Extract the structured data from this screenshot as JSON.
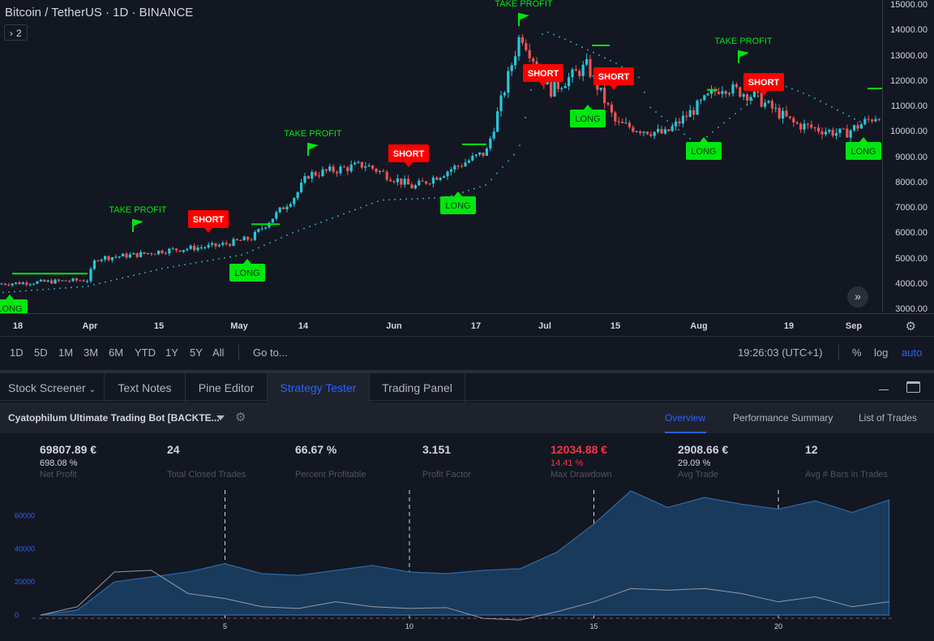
{
  "symbol": {
    "title": "Bitcoin / TetherUS · 1D · BINANCE",
    "indicator_count": "2"
  },
  "price_axis": [
    "15000.00",
    "14000.00",
    "13000.00",
    "12000.00",
    "11000.00",
    "10000.00",
    "9000.00",
    "8000.00",
    "7000.00",
    "6000.00",
    "5000.00",
    "4000.00",
    "3000.00"
  ],
  "time_axis": [
    "18",
    "Apr",
    "15",
    "May",
    "14",
    "Jun",
    "17",
    "Jul",
    "15",
    "Aug",
    "19",
    "Sep"
  ],
  "signals": [
    {
      "type": "long",
      "label": "LONG"
    },
    {
      "type": "tp",
      "label": "TAKE PROFIT"
    },
    {
      "type": "short",
      "label": "SHORT"
    },
    {
      "type": "long",
      "label": "LONG"
    },
    {
      "type": "tp",
      "label": "TAKE PROFIT"
    },
    {
      "type": "short",
      "label": "SHORT"
    },
    {
      "type": "long",
      "label": "LONG"
    },
    {
      "type": "tp",
      "label": "TAKE PROFIT"
    },
    {
      "type": "short",
      "label": "SHORT"
    },
    {
      "type": "long",
      "label": "LONG"
    },
    {
      "type": "short",
      "label": "SHORT"
    },
    {
      "type": "long",
      "label": "LONG"
    },
    {
      "type": "tp",
      "label": "TAKE PROFIT"
    },
    {
      "type": "short",
      "label": "SHORT"
    },
    {
      "type": "long",
      "label": "LONG"
    }
  ],
  "range_bar": {
    "ranges": [
      "1D",
      "5D",
      "1M",
      "3M",
      "6M",
      "YTD",
      "1Y",
      "5Y",
      "All"
    ],
    "goto": "Go to...",
    "clock": "19:26:03 (UTC+1)",
    "percent": "%",
    "log": "log",
    "auto": "auto"
  },
  "tabs": [
    "Stock Screener",
    "Text Notes",
    "Pine Editor",
    "Strategy Tester",
    "Trading Panel"
  ],
  "active_tab": "Strategy Tester",
  "strategy": {
    "name": "Cyatophilum Ultimate Trading Bot [BACKTE...",
    "subtabs": [
      "Overview",
      "Performance Summary",
      "List of Trades"
    ],
    "active_subtab": "Overview"
  },
  "stats": [
    {
      "value": "69807.89 €",
      "sub": "698.08 %",
      "label": "Net Profit",
      "color": "#d1d4dc"
    },
    {
      "value": "24",
      "sub": "",
      "label": "Total Closed Trades",
      "color": "#d1d4dc"
    },
    {
      "value": "66.67 %",
      "sub": "",
      "label": "Percent Profitable",
      "color": "#d1d4dc"
    },
    {
      "value": "3.151",
      "sub": "",
      "label": "Profit Factor",
      "color": "#d1d4dc"
    },
    {
      "value": "12034.88 €",
      "sub": "14.41 %",
      "label": "Max Drawdown",
      "color": "#f23645"
    },
    {
      "value": "2908.66 €",
      "sub": "29.09 %",
      "label": "Avg Trade",
      "color": "#d1d4dc"
    },
    {
      "value": "12",
      "sub": "",
      "label": "Avg # Bars in Trades",
      "color": "#d1d4dc"
    }
  ],
  "colors": {
    "up": "#26c6da",
    "down": "#ef5350",
    "long": "#00e70f",
    "short": "#ff0000",
    "accent": "#2962ff",
    "equity_fill": "#1a3a5c",
    "equity_line": "#2f6aa5"
  },
  "chart_data": [
    {
      "type": "candlestick",
      "title": "Bitcoin / TetherUS · 1D · BINANCE",
      "ylim": [
        3000,
        15200
      ],
      "x_ticks": [
        "18",
        "Apr",
        "15",
        "May",
        "14",
        "Jun",
        "17",
        "Jul",
        "15",
        "Aug",
        "19",
        "Sep"
      ],
      "close_path": [
        [
          "18",
          4000
        ],
        [
          "Apr",
          4150
        ],
        [
          "Apr",
          5000
        ],
        [
          "15",
          5150
        ],
        [
          "15",
          5300
        ],
        [
          "May",
          5500
        ],
        [
          "May",
          5800
        ],
        [
          "14",
          7500
        ],
        [
          "14",
          8300
        ],
        [
          "Jun",
          8700
        ],
        [
          "Jun",
          7800
        ],
        [
          "17",
          8500
        ],
        [
          "17",
          9200
        ],
        [
          "Jul",
          12300
        ],
        [
          "Jul",
          13900
        ],
        [
          "Jul",
          11600
        ],
        [
          "15",
          12600
        ],
        [
          "15",
          10300
        ],
        [
          "Aug",
          9900
        ],
        [
          "Aug",
          11800
        ],
        [
          "19",
          11400
        ],
        [
          "19",
          10300
        ],
        [
          "Sep",
          9900
        ],
        [
          "Sep",
          10700
        ]
      ]
    },
    {
      "type": "area",
      "title": "",
      "x_ticks": [
        5,
        10,
        15,
        20
      ],
      "y_ticks": [
        0,
        20000,
        40000,
        60000
      ],
      "ylim": [
        -2000,
        75000
      ],
      "x": [
        0,
        1,
        2,
        3,
        4,
        5,
        6,
        7,
        8,
        9,
        10,
        11,
        12,
        13,
        14,
        15,
        16,
        17,
        18,
        19,
        20,
        21,
        22,
        23
      ],
      "series": [
        {
          "name": "",
          "values": [
            0,
            3000,
            20000,
            23000,
            26000,
            31000,
            25000,
            24000,
            27000,
            30000,
            26000,
            25000,
            27000,
            28000,
            38000,
            55000,
            75000,
            65000,
            71000,
            67000,
            64000,
            69000,
            62000,
            69500
          ]
        },
        {
          "name": "",
          "values": [
            0,
            5000,
            26000,
            27000,
            13000,
            10000,
            5000,
            4000,
            8000,
            5000,
            4000,
            4500,
            -2000,
            -3000,
            2000,
            8000,
            16000,
            15000,
            16000,
            13000,
            8000,
            11000,
            5000,
            8000
          ]
        }
      ]
    }
  ]
}
